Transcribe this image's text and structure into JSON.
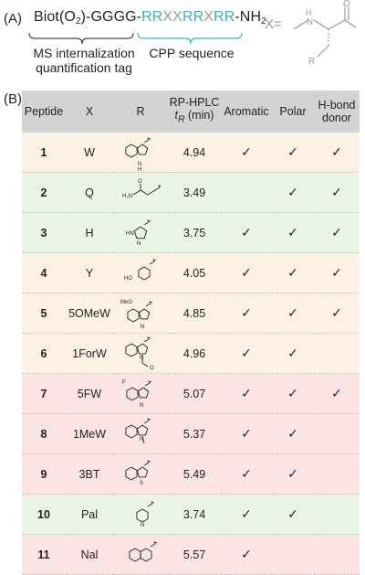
{
  "panel_a": {
    "label": "(A)",
    "seq_biot": "Biot(O",
    "seq_biot_sub": "2",
    "seq_tag": ")-GGGG-",
    "seq_rr1": "RR",
    "seq_xx1": "XX",
    "seq_rr2": "RR",
    "seq_x2": "X",
    "seq_rr3": "RR",
    "seq_nh": "-NH",
    "seq_nh_sub": "2",
    "caption_tag_line1": "MS internalization",
    "caption_tag_line2": "quantification tag",
    "caption_cpp": "CPP sequence",
    "x_equals": "X=",
    "struct_h": "H",
    "struct_n": "N",
    "struct_o": "O",
    "struct_r": "R"
  },
  "panel_b": {
    "label": "(B)",
    "headers": {
      "peptide": "Peptide",
      "x": "X",
      "r": "R",
      "hplc_line1": "RP-HPLC",
      "hplc_t": "t",
      "hplc_sub": "R",
      "hplc_unit": " (min)",
      "aromatic": "Aromatic",
      "polar": "Polar",
      "hbond_line1": "H-bond",
      "hbond_line2": "donor"
    },
    "check_symbol": "✓",
    "rows": [
      {
        "peptide": "1",
        "x": "W",
        "hplc": "4.94",
        "aromatic": "✓",
        "polar": "✓",
        "hbond": "✓",
        "color": "orange",
        "r_label1": "N",
        "r_label2": "H"
      },
      {
        "peptide": "2",
        "x": "Q",
        "hplc": "3.49",
        "aromatic": "",
        "polar": "✓",
        "hbond": "✓",
        "color": "green",
        "r_label1": "H₂N",
        "r_label2": "O"
      },
      {
        "peptide": "3",
        "x": "H",
        "hplc": "3.75",
        "aromatic": "✓",
        "polar": "✓",
        "hbond": "✓",
        "color": "green",
        "r_label1": "HN",
        "r_label2": "N"
      },
      {
        "peptide": "4",
        "x": "Y",
        "hplc": "4.05",
        "aromatic": "✓",
        "polar": "✓",
        "hbond": "✓",
        "color": "orange",
        "r_label1": "HO",
        "r_label2": ""
      },
      {
        "peptide": "5",
        "x": "5OMeW",
        "hplc": "4.85",
        "aromatic": "✓",
        "polar": "✓",
        "hbond": "✓",
        "color": "orange",
        "r_label1": "MeO",
        "r_label2": "N"
      },
      {
        "peptide": "6",
        "x": "1ForW",
        "hplc": "4.96",
        "aromatic": "✓",
        "polar": "✓",
        "hbond": "",
        "color": "orange",
        "r_label1": "N",
        "r_label2": "O"
      },
      {
        "peptide": "7",
        "x": "5FW",
        "hplc": "5.07",
        "aromatic": "✓",
        "polar": "✓",
        "hbond": "✓",
        "color": "red",
        "r_label1": "F",
        "r_label2": "N"
      },
      {
        "peptide": "8",
        "x": "1MeW",
        "hplc": "5.37",
        "aromatic": "✓",
        "polar": "✓",
        "hbond": "",
        "color": "red",
        "r_label1": "N",
        "r_label2": ""
      },
      {
        "peptide": "9",
        "x": "3BT",
        "hplc": "5.49",
        "aromatic": "✓",
        "polar": "✓",
        "hbond": "",
        "color": "red",
        "r_label1": "S",
        "r_label2": ""
      },
      {
        "peptide": "10",
        "x": "Pal",
        "hplc": "3.74",
        "aromatic": "✓",
        "polar": "✓",
        "hbond": "",
        "color": "green",
        "r_label1": "N",
        "r_label2": ""
      },
      {
        "peptide": "11",
        "x": "Nal",
        "hplc": "5.57",
        "aromatic": "✓",
        "polar": "",
        "hbond": "",
        "color": "red",
        "r_label1": "",
        "r_label2": ""
      }
    ]
  }
}
